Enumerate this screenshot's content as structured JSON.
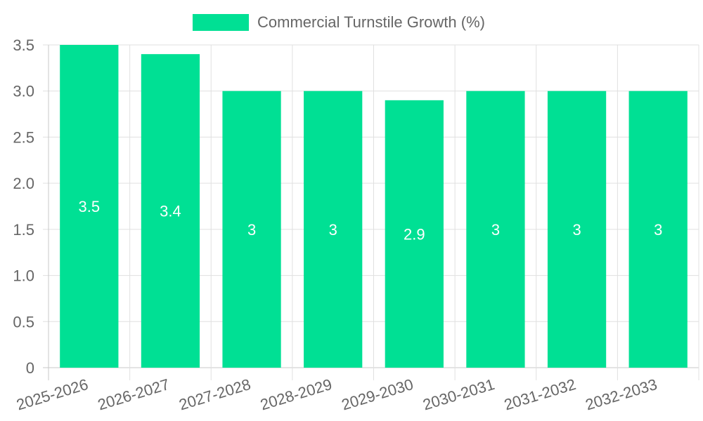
{
  "chart_data": {
    "type": "bar",
    "categories": [
      "2025-2026",
      "2026-2027",
      "2027-2028",
      "2028-2029",
      "2029-2030",
      "2030-2031",
      "2031-2032",
      "2032-2033"
    ],
    "series": [
      {
        "name": "Commercial Turnstile Growth (%)",
        "values": [
          3.5,
          3.4,
          3,
          3,
          2.9,
          3,
          3,
          3
        ],
        "color": "#00e094"
      }
    ],
    "data_labels": [
      "3.5",
      "3.4",
      "3",
      "3",
      "2.9",
      "3",
      "3",
      "3"
    ],
    "y_ticks": [
      "0",
      "0.5",
      "1.0",
      "1.5",
      "2.0",
      "2.5",
      "3.0",
      "3.5"
    ],
    "y_tick_values": [
      0,
      0.5,
      1.0,
      1.5,
      2.0,
      2.5,
      3.0,
      3.5
    ],
    "ylim": [
      0,
      3.5
    ],
    "title": "",
    "xlabel": "",
    "ylabel": "",
    "grid": true,
    "legend_position": "top-center"
  }
}
